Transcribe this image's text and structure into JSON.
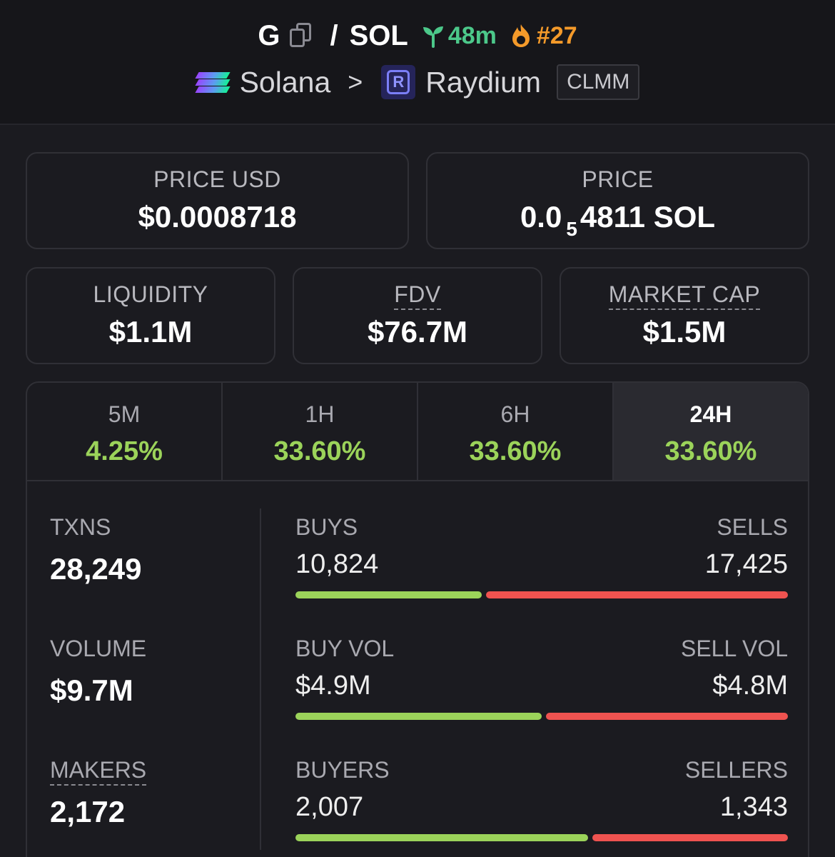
{
  "header": {
    "token": "G",
    "slash": "/",
    "quote": "SOL",
    "age": "48m",
    "rank": "#27",
    "chain": "Solana",
    "separator": ">",
    "dex": "Raydium",
    "pool_type": "CLMM",
    "dex_logo_letter": "R"
  },
  "prices": {
    "usd_label": "PRICE USD",
    "usd_value": "$0.0008718",
    "native_label": "PRICE",
    "native_prefix": "0.0",
    "native_zeros": "5",
    "native_suffix": "4811 SOL"
  },
  "metrics": {
    "liquidity_label": "LIQUIDITY",
    "liquidity_value": "$1.1M",
    "fdv_label": "FDV",
    "fdv_value": "$76.7M",
    "mcap_label": "MARKET CAP",
    "mcap_value": "$1.5M"
  },
  "periods": [
    {
      "label": "5M",
      "change": "4.25%"
    },
    {
      "label": "1H",
      "change": "33.60%"
    },
    {
      "label": "6H",
      "change": "33.60%"
    },
    {
      "label": "24H",
      "change": "33.60%",
      "active": true
    }
  ],
  "stats": {
    "txns_label": "TXNS",
    "txns_value": "28,249",
    "volume_label": "VOLUME",
    "volume_value": "$9.7M",
    "makers_label": "MAKERS",
    "makers_value": "2,172"
  },
  "pairs": {
    "buys_label": "BUYS",
    "buys_value": "10,824",
    "sells_label": "SELLS",
    "sells_value": "17,425",
    "buys_ratio": 0.383,
    "buyvol_label": "BUY VOL",
    "buyvol_value": "$4.9M",
    "sellvol_label": "SELL VOL",
    "sellvol_value": "$4.8M",
    "buyvol_ratio": 0.505,
    "buyers_label": "BUYERS",
    "buyers_value": "2,007",
    "sellers_label": "SELLERS",
    "sellers_value": "1,343",
    "buyers_ratio": 0.599
  },
  "colors": {
    "positive": "#9bd35a",
    "negative": "#ef5350",
    "age": "#4cc88a",
    "rank": "#f49a2a"
  }
}
